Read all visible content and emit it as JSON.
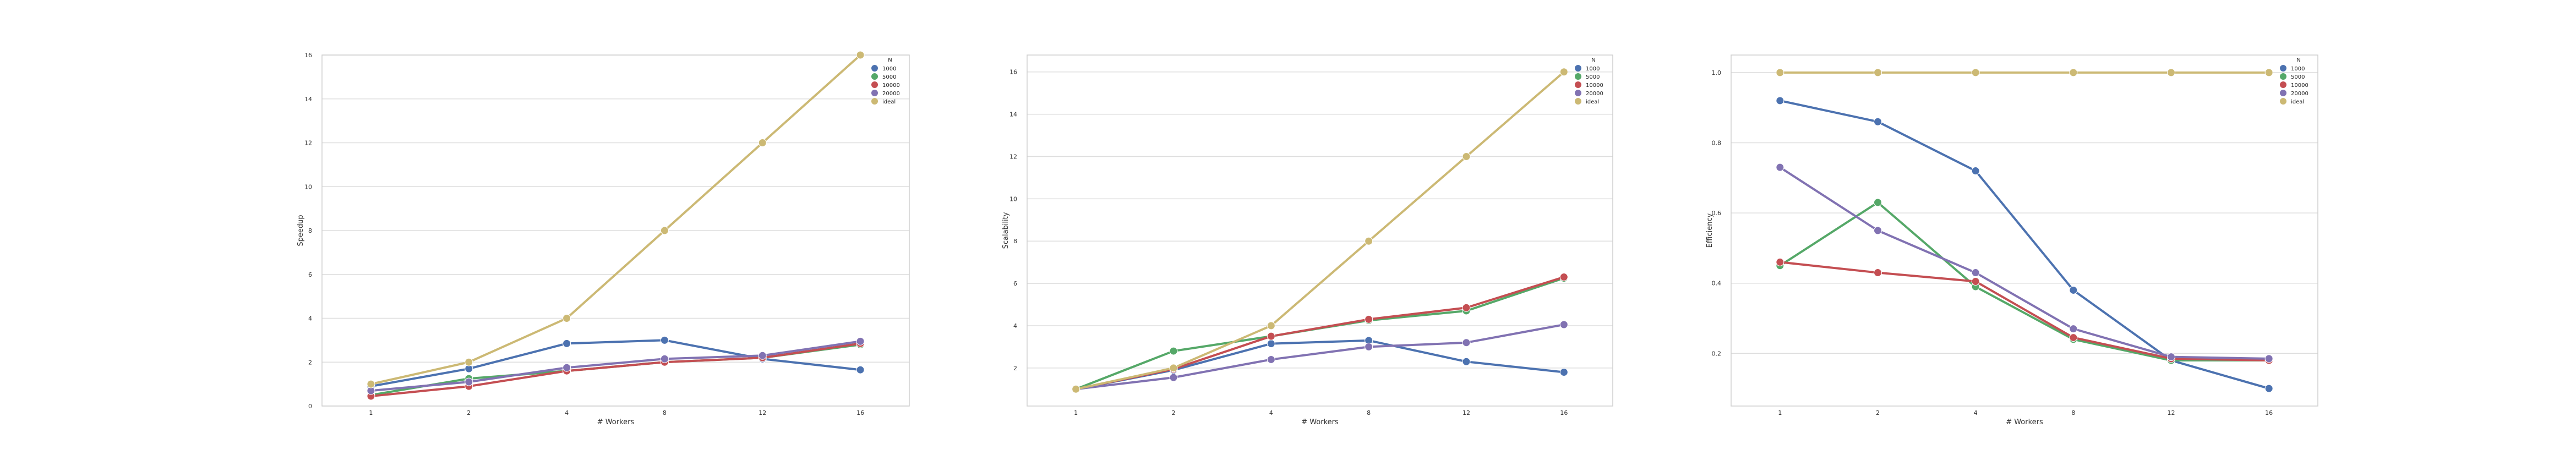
{
  "chart_data": [
    {
      "type": "line",
      "xlabel": "# Workers",
      "ylabel": "Speedup",
      "x": [
        1,
        2,
        4,
        8,
        12,
        16
      ],
      "ylim": [
        0,
        16
      ],
      "yticks": [
        0,
        2,
        4,
        6,
        8,
        10,
        12,
        14,
        16
      ],
      "legend_title": "N",
      "legend_position": "top-right",
      "series": [
        {
          "name": "1000",
          "color": "#4c72b0",
          "values": [
            0.9,
            1.7,
            2.85,
            3.0,
            2.15,
            1.65
          ]
        },
        {
          "name": "5000",
          "color": "#55a868",
          "values": [
            0.5,
            1.25,
            1.6,
            2.0,
            2.2,
            2.8
          ]
        },
        {
          "name": "10000",
          "color": "#c44e52",
          "values": [
            0.45,
            0.9,
            1.6,
            2.0,
            2.2,
            2.85
          ]
        },
        {
          "name": "20000",
          "color": "#8172b2",
          "values": [
            0.7,
            1.1,
            1.75,
            2.15,
            2.3,
            2.95
          ]
        },
        {
          "name": "ideal",
          "color": "#ccb974",
          "values": [
            1,
            2,
            4,
            8,
            12,
            16
          ]
        }
      ]
    },
    {
      "type": "line",
      "xlabel": "# Workers",
      "ylabel": "Scalability",
      "x": [
        1,
        2,
        4,
        8,
        12,
        16
      ],
      "ylim": [
        0.2,
        16.8
      ],
      "yticks": [
        2,
        4,
        6,
        8,
        10,
        12,
        14,
        16
      ],
      "legend_title": "N",
      "legend_position": "top-right",
      "series": [
        {
          "name": "1000",
          "color": "#4c72b0",
          "values": [
            1,
            1.9,
            3.15,
            3.3,
            2.3,
            1.8
          ]
        },
        {
          "name": "5000",
          "color": "#55a868",
          "values": [
            1,
            2.8,
            3.5,
            4.25,
            4.7,
            6.25
          ]
        },
        {
          "name": "10000",
          "color": "#c44e52",
          "values": [
            1,
            1.95,
            3.5,
            4.3,
            4.85,
            6.3
          ]
        },
        {
          "name": "20000",
          "color": "#8172b2",
          "values": [
            1,
            1.55,
            2.4,
            3.0,
            3.2,
            4.05
          ]
        },
        {
          "name": "ideal",
          "color": "#ccb974",
          "values": [
            1,
            2,
            4,
            8,
            12,
            16
          ]
        }
      ]
    },
    {
      "type": "line",
      "xlabel": "# Workers",
      "ylabel": "Efficiency",
      "x": [
        1,
        2,
        4,
        8,
        12,
        16
      ],
      "ylim": [
        0.05,
        1.05
      ],
      "yticks": [
        0.2,
        0.4,
        0.6,
        0.8,
        1.0
      ],
      "ytick_labels": [
        "0.2",
        "0.4",
        "0.6",
        "0.8",
        "1.0"
      ],
      "legend_title": "N",
      "legend_position": "top-right",
      "series": [
        {
          "name": "1000",
          "color": "#4c72b0",
          "values": [
            0.92,
            0.86,
            0.72,
            0.38,
            0.18,
            0.1
          ]
        },
        {
          "name": "5000",
          "color": "#55a868",
          "values": [
            0.45,
            0.63,
            0.39,
            0.24,
            0.18,
            0.18
          ]
        },
        {
          "name": "10000",
          "color": "#c44e52",
          "values": [
            0.46,
            0.43,
            0.405,
            0.245,
            0.185,
            0.18
          ]
        },
        {
          "name": "20000",
          "color": "#8172b2",
          "values": [
            0.73,
            0.55,
            0.43,
            0.27,
            0.19,
            0.185
          ]
        },
        {
          "name": "ideal",
          "color": "#ccb974",
          "values": [
            1.0,
            1.0,
            1.0,
            1.0,
            1.0,
            1.0
          ]
        }
      ]
    }
  ]
}
